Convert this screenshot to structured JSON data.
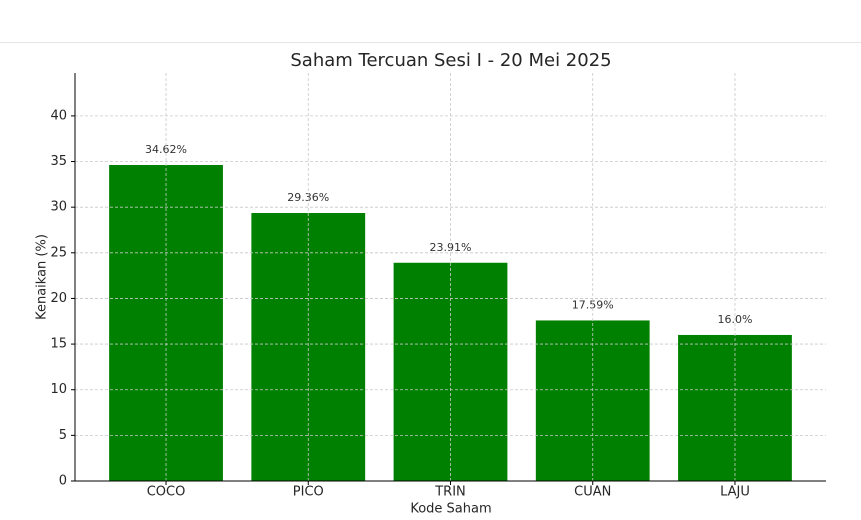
{
  "chart_data": {
    "type": "bar",
    "title": "Saham Tercuan Sesi I - 20 Mei 2025",
    "x_label": "Kode Saham",
    "y_label": "Kenaikan (%)",
    "categories": [
      "COCO",
      "PICO",
      "TRIN",
      "CUAN",
      "LAJU"
    ],
    "values": [
      34.62,
      29.36,
      23.91,
      17.59,
      16.0
    ],
    "value_labels": [
      "34.62%",
      "29.36%",
      "23.91%",
      "17.59%",
      "16.0%"
    ],
    "color": "#008000",
    "ylim": [
      0,
      44.7
    ],
    "yticks": [
      0,
      5,
      10,
      15,
      20,
      25,
      30,
      35,
      40
    ],
    "grid": true
  }
}
